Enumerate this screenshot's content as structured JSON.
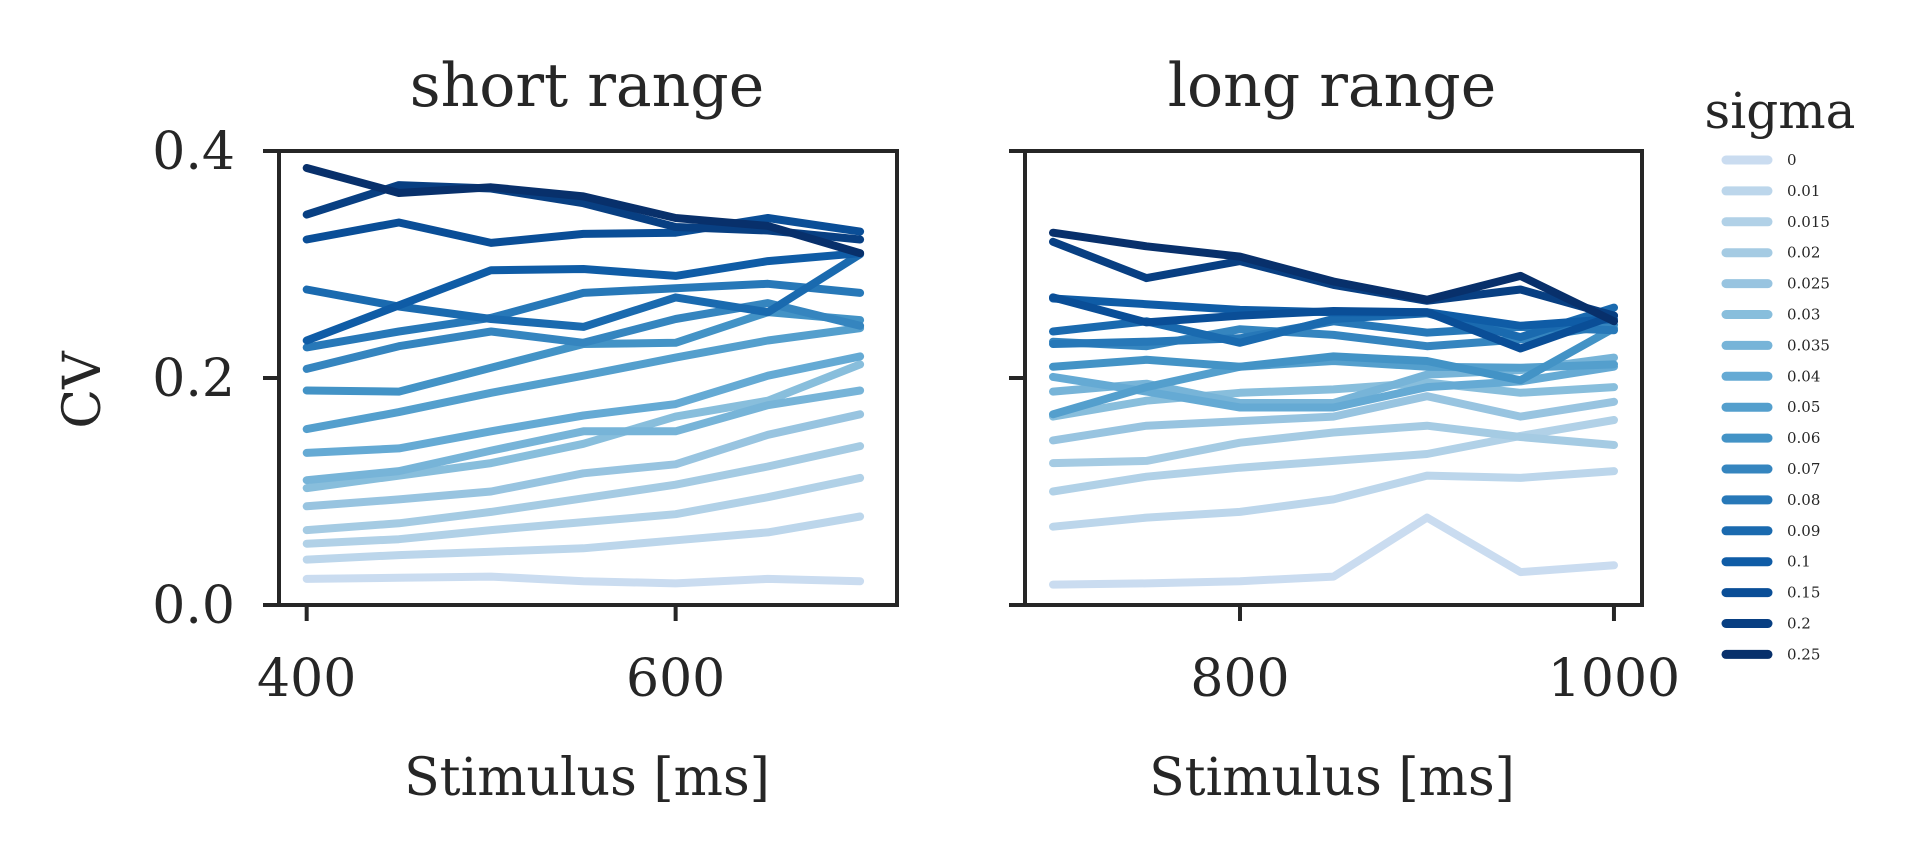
{
  "chart_data": [
    {
      "type": "line",
      "title": "short range",
      "xlabel": "Stimulus [ms]",
      "ylabel": "CV",
      "xlim": [
        385,
        720
      ],
      "ylim": [
        0,
        0.4
      ],
      "xticks": [
        400,
        600
      ],
      "xtick_labels": [
        "400",
        "600"
      ],
      "yticks": [
        0,
        0.2,
        0.4
      ],
      "ytick_labels": [
        "0.0",
        "0.2",
        "0.4"
      ],
      "x": [
        400,
        450,
        500,
        550,
        600,
        650,
        700
      ],
      "series": [
        {
          "name": "0",
          "color": "#cadcf0",
          "values": [
            0.023,
            0.024,
            0.025,
            0.021,
            0.019,
            0.023,
            0.021
          ]
        },
        {
          "name": "0.01",
          "color": "#bcd6eb",
          "values": [
            0.04,
            0.044,
            0.047,
            0.05,
            0.057,
            0.064,
            0.078
          ]
        },
        {
          "name": "0.015",
          "color": "#b1d1e7",
          "values": [
            0.054,
            0.058,
            0.066,
            0.073,
            0.08,
            0.095,
            0.112
          ]
        },
        {
          "name": "0.02",
          "color": "#a5cbe3",
          "values": [
            0.066,
            0.072,
            0.082,
            0.094,
            0.106,
            0.122,
            0.14
          ]
        },
        {
          "name": "0.025",
          "color": "#98c4e0",
          "values": [
            0.087,
            0.093,
            0.1,
            0.116,
            0.124,
            0.15,
            0.168
          ]
        },
        {
          "name": "0.03",
          "color": "#88bedc",
          "values": [
            0.103,
            0.114,
            0.125,
            0.142,
            0.166,
            0.18,
            0.212
          ]
        },
        {
          "name": "0.035",
          "color": "#77b4d8",
          "values": [
            0.11,
            0.118,
            0.136,
            0.153,
            0.153,
            0.176,
            0.189
          ]
        },
        {
          "name": "0.04",
          "color": "#65aad4",
          "values": [
            0.134,
            0.138,
            0.153,
            0.167,
            0.177,
            0.202,
            0.219
          ]
        },
        {
          "name": "0.05",
          "color": "#549fcd",
          "values": [
            0.155,
            0.17,
            0.187,
            0.202,
            0.218,
            0.233,
            0.244
          ]
        },
        {
          "name": "0.06",
          "color": "#4393c6",
          "values": [
            0.189,
            0.188,
            0.209,
            0.23,
            0.231,
            0.258,
            0.251
          ]
        },
        {
          "name": "0.07",
          "color": "#3585bf",
          "values": [
            0.208,
            0.228,
            0.241,
            0.231,
            0.252,
            0.266,
            0.246
          ]
        },
        {
          "name": "0.08",
          "color": "#2778b8",
          "values": [
            0.227,
            0.241,
            0.253,
            0.275,
            0.279,
            0.283,
            0.275
          ]
        },
        {
          "name": "0.09",
          "color": "#1a6aaf",
          "values": [
            0.278,
            0.263,
            0.252,
            0.245,
            0.271,
            0.258,
            0.309
          ]
        },
        {
          "name": "0.1",
          "color": "#0f5ca6",
          "values": [
            0.233,
            0.264,
            0.295,
            0.296,
            0.29,
            0.303,
            0.31
          ]
        },
        {
          "name": "0.15",
          "color": "#0a4e97",
          "values": [
            0.322,
            0.337,
            0.319,
            0.327,
            0.328,
            0.341,
            0.329
          ]
        },
        {
          "name": "0.2",
          "color": "#083f82",
          "values": [
            0.344,
            0.37,
            0.367,
            0.354,
            0.333,
            0.33,
            0.322
          ]
        },
        {
          "name": "0.25",
          "color": "#08306b",
          "values": [
            0.385,
            0.363,
            0.368,
            0.36,
            0.341,
            0.334,
            0.31
          ]
        }
      ]
    },
    {
      "type": "line",
      "title": "long range",
      "xlabel": "Stimulus [ms]",
      "ylabel": "",
      "xlim": [
        685,
        1015
      ],
      "ylim": [
        0,
        0.4
      ],
      "xticks": [
        800,
        1000
      ],
      "xtick_labels": [
        "800",
        "1000"
      ],
      "yticks": [
        0,
        0.2,
        0.4
      ],
      "ytick_labels": [
        "",
        "",
        ""
      ],
      "x": [
        700,
        750,
        800,
        850,
        900,
        950,
        1000
      ],
      "series": [
        {
          "name": "0",
          "color": "#cadcf0",
          "values": [
            0.018,
            0.019,
            0.021,
            0.025,
            0.077,
            0.029,
            0.035
          ]
        },
        {
          "name": "0.01",
          "color": "#bcd6eb",
          "values": [
            0.069,
            0.077,
            0.082,
            0.093,
            0.114,
            0.112,
            0.118
          ]
        },
        {
          "name": "0.015",
          "color": "#b1d1e7",
          "values": [
            0.1,
            0.113,
            0.121,
            0.127,
            0.133,
            0.149,
            0.163
          ]
        },
        {
          "name": "0.02",
          "color": "#a5cbe3",
          "values": [
            0.125,
            0.127,
            0.143,
            0.152,
            0.158,
            0.148,
            0.141
          ]
        },
        {
          "name": "0.025",
          "color": "#98c4e0",
          "values": [
            0.145,
            0.158,
            0.162,
            0.166,
            0.184,
            0.166,
            0.179
          ]
        },
        {
          "name": "0.03",
          "color": "#88bedc",
          "values": [
            0.166,
            0.18,
            0.187,
            0.19,
            0.196,
            0.187,
            0.192
          ]
        },
        {
          "name": "0.035",
          "color": "#77b4d8",
          "values": [
            0.188,
            0.195,
            0.178,
            0.178,
            0.203,
            0.207,
            0.218
          ]
        },
        {
          "name": "0.04",
          "color": "#65aad4",
          "values": [
            0.201,
            0.188,
            0.174,
            0.174,
            0.192,
            0.197,
            0.21
          ]
        },
        {
          "name": "0.05",
          "color": "#549fcd",
          "values": [
            0.168,
            0.192,
            0.21,
            0.215,
            0.21,
            0.209,
            0.212
          ]
        },
        {
          "name": "0.06",
          "color": "#4393c6",
          "values": [
            0.21,
            0.216,
            0.21,
            0.219,
            0.215,
            0.198,
            0.244
          ]
        },
        {
          "name": "0.07",
          "color": "#3585bf",
          "values": [
            0.232,
            0.228,
            0.243,
            0.238,
            0.228,
            0.234,
            0.247
          ]
        },
        {
          "name": "0.08",
          "color": "#2778b8",
          "values": [
            0.23,
            0.232,
            0.235,
            0.25,
            0.24,
            0.245,
            0.242
          ]
        },
        {
          "name": "0.09",
          "color": "#1a6aaf",
          "values": [
            0.241,
            0.25,
            0.231,
            0.252,
            0.257,
            0.236,
            0.262
          ]
        },
        {
          "name": "0.1",
          "color": "#0f5ca6",
          "values": [
            0.27,
            0.265,
            0.26,
            0.258,
            0.258,
            0.246,
            0.252
          ]
        },
        {
          "name": "0.15",
          "color": "#0a4e97",
          "values": [
            0.271,
            0.249,
            0.255,
            0.259,
            0.258,
            0.226,
            0.255
          ]
        },
        {
          "name": "0.2",
          "color": "#083f82",
          "values": [
            0.32,
            0.288,
            0.303,
            0.282,
            0.268,
            0.278,
            0.255
          ]
        },
        {
          "name": "0.25",
          "color": "#08306b",
          "values": [
            0.328,
            0.316,
            0.307,
            0.285,
            0.269,
            0.29,
            0.25
          ]
        }
      ]
    }
  ],
  "legend": {
    "title": "sigma",
    "placement": "right, outside",
    "entries": [
      "0",
      "0.01",
      "0.015",
      "0.02",
      "0.025",
      "0.03",
      "0.035",
      "0.04",
      "0.05",
      "0.06",
      "0.07",
      "0.08",
      "0.09",
      "0.1",
      "0.15",
      "0.2",
      "0.25"
    ],
    "colors": [
      "#cadcf0",
      "#bcd6eb",
      "#b1d1e7",
      "#a5cbe3",
      "#98c4e0",
      "#88bedc",
      "#77b4d8",
      "#65aad4",
      "#549fcd",
      "#4393c6",
      "#3585bf",
      "#2778b8",
      "#1a6aaf",
      "#0f5ca6",
      "#0a4e97",
      "#083f82",
      "#08306b"
    ]
  }
}
